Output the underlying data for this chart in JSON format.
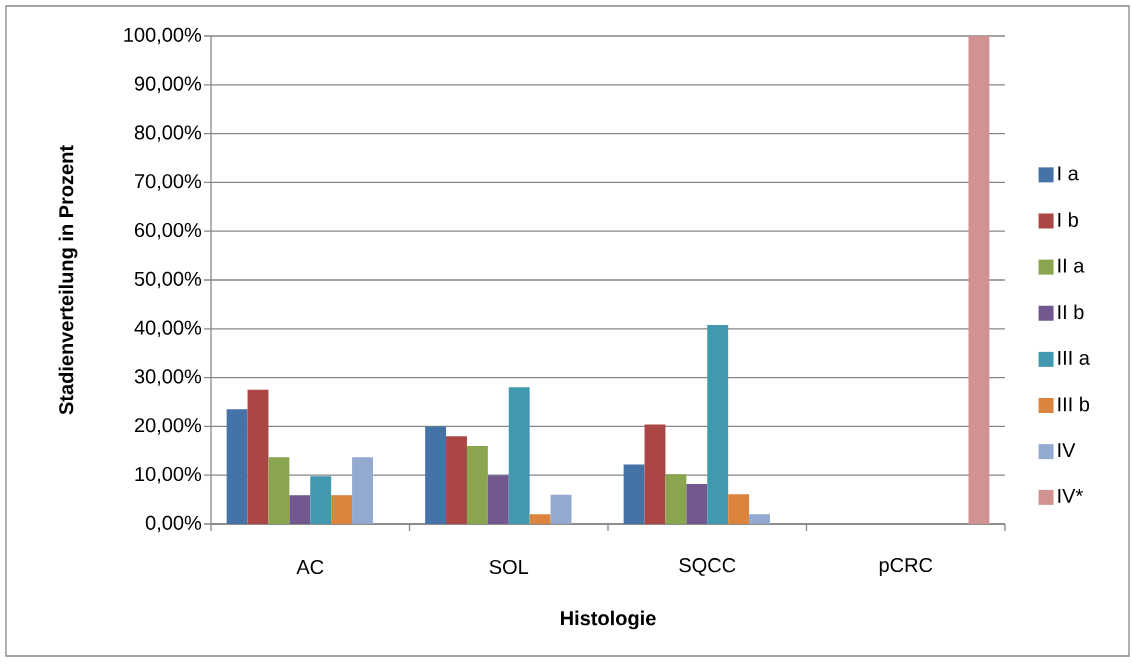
{
  "chart_data": {
    "type": "bar",
    "xlabel": "Histologie",
    "ylabel": "Stadienverteilung in Prozent",
    "categories": [
      "AC",
      "SOL",
      "SQCC",
      "pCRC"
    ],
    "series": [
      {
        "name": "I a",
        "color": "#4572a7",
        "values": [
          23.5,
          20,
          12.2,
          null
        ]
      },
      {
        "name": "I b",
        "color": "#aa4643",
        "values": [
          27.5,
          18,
          20.4,
          null
        ]
      },
      {
        "name": "II a",
        "color": "#89a54e",
        "values": [
          13.7,
          16,
          10.2,
          null
        ]
      },
      {
        "name": "II b",
        "color": "#71588f",
        "values": [
          5.9,
          10,
          8.2,
          null
        ]
      },
      {
        "name": "III a",
        "color": "#4198af",
        "values": [
          9.8,
          28,
          40.8,
          null
        ]
      },
      {
        "name": "III b",
        "color": "#db843d",
        "values": [
          5.9,
          2,
          6.1,
          null
        ]
      },
      {
        "name": "IV",
        "color": "#93a9cf",
        "values": [
          13.7,
          6,
          2.0,
          null
        ]
      },
      {
        "name": "IV*",
        "color": "#d19392",
        "values": [
          null,
          null,
          null,
          100
        ]
      }
    ],
    "ylim": [
      0,
      100
    ],
    "yticks": [
      {
        "value": 0,
        "label": "0,00%"
      },
      {
        "value": 10,
        "label": "10,00%"
      },
      {
        "value": 20,
        "label": "20,00%"
      },
      {
        "value": 30,
        "label": "30,00%"
      },
      {
        "value": 40,
        "label": "40,00%"
      },
      {
        "value": 50,
        "label": "50,00%"
      },
      {
        "value": 60,
        "label": "60,00%"
      },
      {
        "value": 70,
        "label": "70,00%"
      },
      {
        "value": 80,
        "label": "80,00%"
      },
      {
        "value": 90,
        "label": "90,00%"
      },
      {
        "value": 100,
        "label": "100,00%"
      }
    ],
    "grid": "y",
    "legend": "right"
  }
}
